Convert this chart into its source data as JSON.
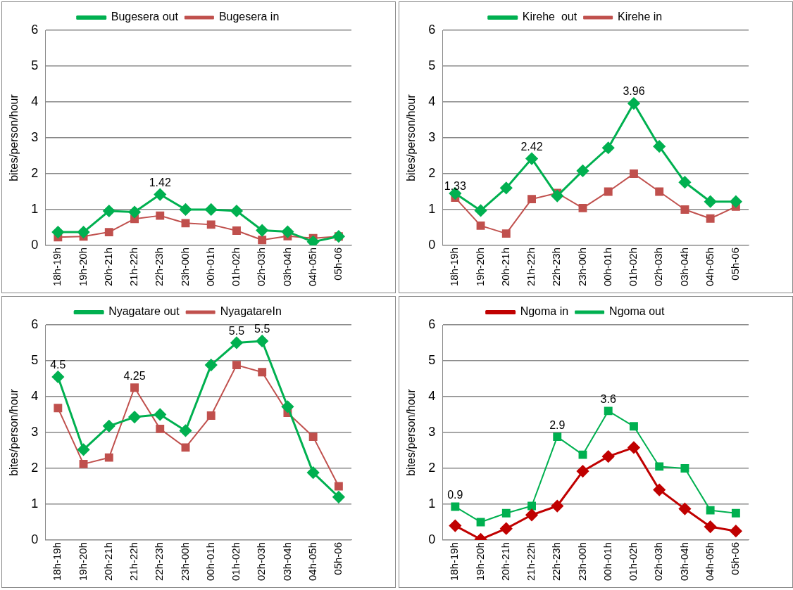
{
  "chart_data": [
    {
      "type": "line",
      "ylabel": "bites/person/hour",
      "legend": "top",
      "grid": "y",
      "ylim": [
        0,
        6
      ],
      "yticks": [
        0,
        1,
        2,
        3,
        4,
        5,
        6
      ],
      "categories": [
        "18h-19h",
        "19h-20h",
        "20h-21h",
        "21h-22h",
        "22h-23h",
        "23h-00h",
        "00h-01h",
        "01h-02h",
        "02h-03h",
        "03h-04h",
        "04h-05h",
        "05h-06"
      ],
      "series": [
        {
          "name": "Bugesera out",
          "color": "#00b050",
          "marker": "diamond",
          "values": [
            0.37,
            0.37,
            0.96,
            0.93,
            1.42,
            1.0,
            1.0,
            0.96,
            0.42,
            0.38,
            0.1,
            0.25
          ]
        },
        {
          "name": "Bugesera in",
          "color": "#c0504d",
          "marker": "square",
          "values": [
            0.23,
            0.25,
            0.37,
            0.74,
            0.83,
            0.62,
            0.58,
            0.41,
            0.15,
            0.26,
            0.2,
            0.25
          ]
        }
      ],
      "annotations": [
        {
          "text": "1.42",
          "x": "22h-23h",
          "y": 1.42
        }
      ]
    },
    {
      "type": "line",
      "ylabel": "bites/person/hour",
      "legend": "top",
      "grid": "y",
      "ylim": [
        0,
        6
      ],
      "yticks": [
        0,
        1,
        2,
        3,
        4,
        5,
        6
      ],
      "categories": [
        "18h-19h",
        "19h-20h",
        "20h-21h",
        "21h-22h",
        "22h-23h",
        "23h-00h",
        "00h-01h",
        "01h-02h",
        "02h-03h",
        "03h-04h",
        "04h-05h",
        "05h-06"
      ],
      "series": [
        {
          "name": "Kirehe  out",
          "color": "#00b050",
          "marker": "diamond",
          "values": [
            1.45,
            0.97,
            1.6,
            2.42,
            1.38,
            2.08,
            2.72,
            3.96,
            2.76,
            1.76,
            1.22,
            1.22
          ]
        },
        {
          "name": "Kirehe in",
          "color": "#c0504d",
          "marker": "square",
          "values": [
            1.33,
            0.55,
            0.33,
            1.29,
            1.46,
            1.04,
            1.5,
            2.0,
            1.5,
            1.0,
            0.75,
            1.08
          ]
        }
      ],
      "annotations": [
        {
          "text": "1.33",
          "x": "18h-19h",
          "y": 1.33
        },
        {
          "text": "2.42",
          "x": "21h-22h",
          "y": 2.42
        },
        {
          "text": "3.96",
          "x": "01h-02h",
          "y": 3.96
        }
      ]
    },
    {
      "type": "line",
      "ylabel": "bites/person/hour",
      "legend": "top",
      "grid": "y",
      "ylim": [
        0,
        6
      ],
      "yticks": [
        0,
        1,
        2,
        3,
        4,
        5,
        6
      ],
      "categories": [
        "18h-19h",
        "19h-20h",
        "20h-21h",
        "21h-22h",
        "22h-23h",
        "23h-00h",
        "00h-01h",
        "01h-02h",
        "02h-03h",
        "03h-04h",
        "04h-05h",
        "05h-06"
      ],
      "series": [
        {
          "name": "Nyagatare out",
          "color": "#00b050",
          "marker": "diamond",
          "values": [
            4.55,
            2.52,
            3.18,
            3.43,
            3.5,
            3.05,
            4.88,
            5.5,
            5.55,
            3.72,
            1.88,
            1.2
          ]
        },
        {
          "name": "NyagatareIn",
          "color": "#c0504d",
          "marker": "square",
          "values": [
            3.68,
            2.12,
            2.3,
            4.25,
            3.1,
            2.58,
            3.47,
            4.88,
            4.68,
            3.55,
            2.88,
            1.5
          ]
        }
      ],
      "annotations": [
        {
          "text": "4.5",
          "x": "18h-19h",
          "y": 4.55
        },
        {
          "text": "4.25",
          "x": "21h-22h",
          "y": 4.25
        },
        {
          "text": "5.5",
          "x": "01h-02h",
          "y": 5.5
        },
        {
          "text": "5.5",
          "x": "02h-03h",
          "y": 5.55
        }
      ]
    },
    {
      "type": "line",
      "ylabel": "bites/person/hour",
      "legend": "top",
      "grid": "y",
      "ylim": [
        0,
        6
      ],
      "yticks": [
        0,
        1,
        2,
        3,
        4,
        5,
        6
      ],
      "categories": [
        "18h-19h",
        "19h-20h",
        "20h-21h",
        "21h-22h",
        "22h-23h",
        "23h-00h",
        "00h-01h",
        "01h-02h",
        "02h-03h",
        "03h-04h",
        "04h-05h",
        "05h-06"
      ],
      "series": [
        {
          "name": "Ngoma in",
          "color": "#c00000",
          "marker": "diamond",
          "values": [
            0.4,
            0.02,
            0.32,
            0.7,
            0.95,
            1.92,
            2.33,
            2.58,
            1.4,
            0.87,
            0.37,
            0.25
          ]
        },
        {
          "name": "Ngoma out",
          "color": "#00b050",
          "marker": "square",
          "values": [
            0.93,
            0.5,
            0.75,
            0.95,
            2.88,
            2.38,
            3.6,
            3.17,
            2.05,
            2.0,
            0.83,
            0.75
          ]
        }
      ],
      "annotations": [
        {
          "text": "0.9",
          "x": "18h-19h",
          "y": 0.93
        },
        {
          "text": "2.9",
          "x": "22h-23h",
          "y": 2.88
        },
        {
          "text": "3.6",
          "x": "00h-01h",
          "y": 3.6
        }
      ]
    }
  ]
}
